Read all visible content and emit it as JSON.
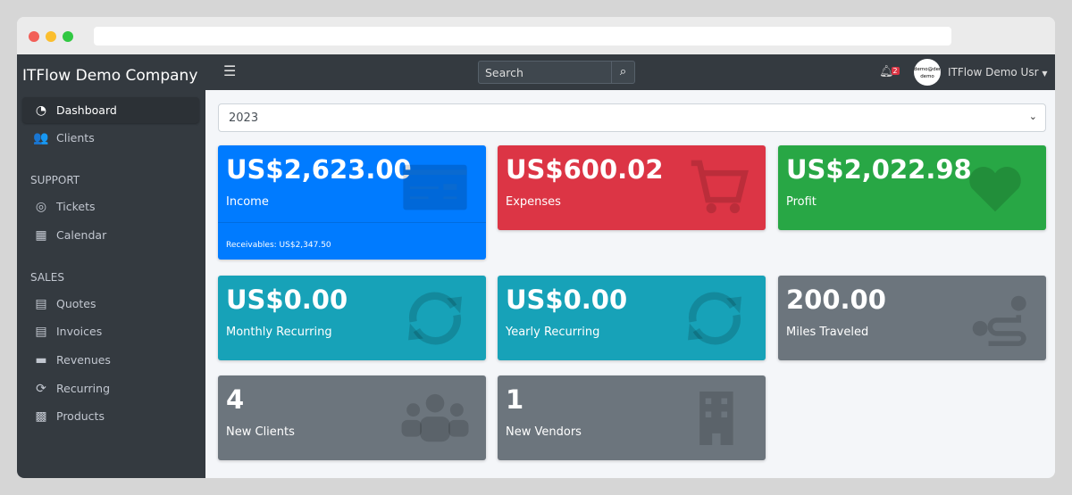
{
  "app": {
    "company": "ITFlow Demo Company"
  },
  "sidebar": {
    "items": [
      {
        "label": "Dashboard",
        "icon": "tachometer-icon",
        "active": true
      },
      {
        "label": "Clients",
        "icon": "users-icon"
      }
    ],
    "support_header": "SUPPORT",
    "support": [
      {
        "label": "Tickets",
        "icon": "life-ring-icon"
      },
      {
        "label": "Calendar",
        "icon": "calendar-icon"
      }
    ],
    "sales_header": "SALES",
    "sales": [
      {
        "label": "Quotes",
        "icon": "file-quote-icon"
      },
      {
        "label": "Invoices",
        "icon": "file-invoice-icon"
      },
      {
        "label": "Revenues",
        "icon": "credit-card-icon"
      },
      {
        "label": "Recurring",
        "icon": "sync-icon"
      },
      {
        "label": "Products",
        "icon": "box-icon"
      }
    ]
  },
  "topbar": {
    "search_placeholder": "Search",
    "notifications": "2",
    "avatar_text": "demo@demo demo",
    "user": "ITFlow Demo Usr"
  },
  "filter": {
    "year": "2023"
  },
  "cards": [
    {
      "value": "US$2,623.00",
      "label": "Income",
      "footer": "Receivables: US$2,347.50",
      "color": "#007bff",
      "icon": "credit-card-icon"
    },
    {
      "value": "US$600.02",
      "label": "Expenses",
      "color": "#dc3545",
      "icon": "shopping-cart-icon"
    },
    {
      "value": "US$2,022.98",
      "label": "Profit",
      "color": "#28a745",
      "icon": "heart-icon"
    },
    {
      "value": "US$0.00",
      "label": "Monthly Recurring",
      "color": "#17a2b8",
      "icon": "sync-icon"
    },
    {
      "value": "US$0.00",
      "label": "Yearly Recurring",
      "color": "#17a2b8",
      "icon": "sync-icon"
    },
    {
      "value": "200.00",
      "label": "Miles Traveled",
      "color": "#6c757d",
      "icon": "route-icon"
    },
    {
      "value": "4",
      "label": "New Clients",
      "color": "#6c757d",
      "icon": "users-icon"
    },
    {
      "value": "1",
      "label": "New Vendors",
      "color": "#6c757d",
      "icon": "building-icon"
    }
  ]
}
